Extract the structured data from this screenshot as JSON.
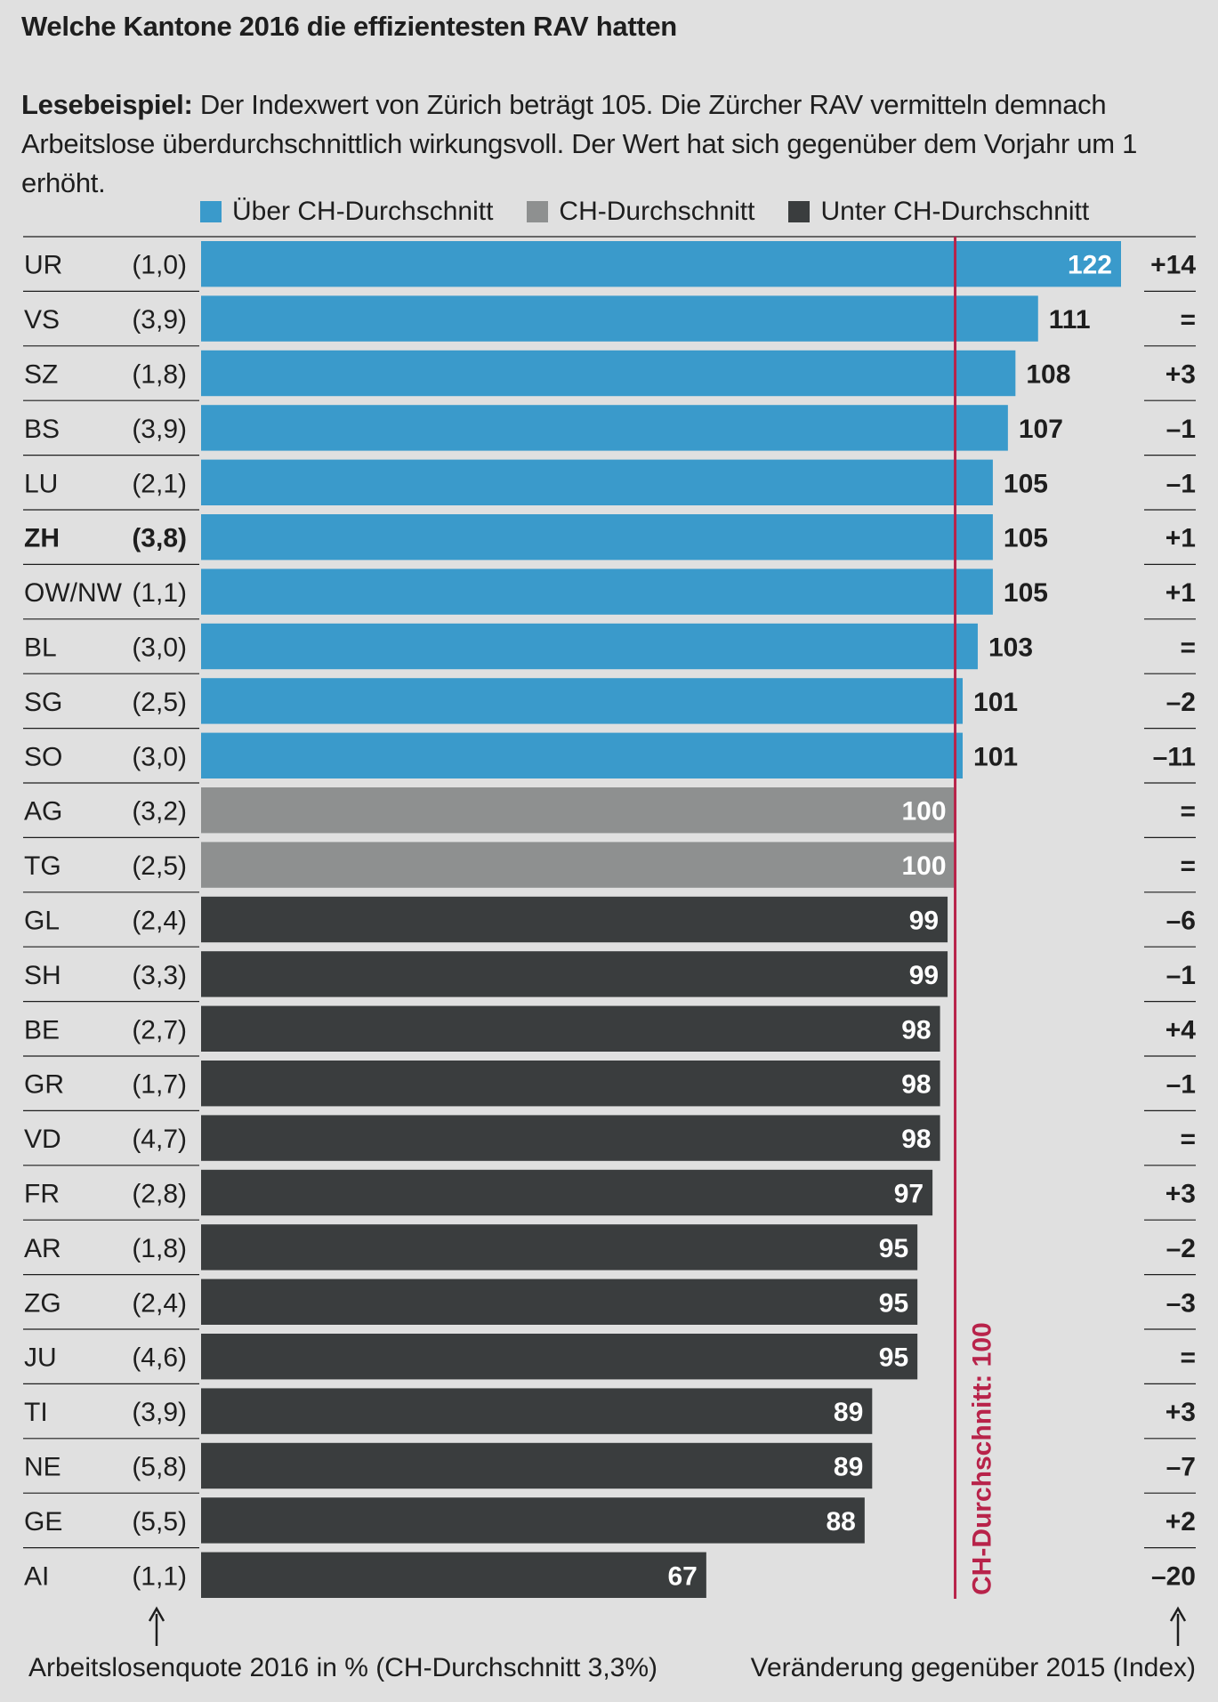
{
  "title": "Welche Kantone 2016 die effizientesten RAV hatten",
  "reading_example": {
    "lead": "Lesebeispiel:",
    "text": " Der Indexwert von Zürich beträgt 105. Die Zürcher RAV vermitteln demnach Arbeitslose überdurchschnittlich wirkungsvoll. Der Wert hat sich gegenüber dem Vorjahr um 1 erhöht."
  },
  "legend": [
    {
      "label": "Über CH-Durchschnitt",
      "color": "#3a9acb"
    },
    {
      "label": "CH-Durchschnitt",
      "color": "#8e9090"
    },
    {
      "label": "Unter CH-Durchschnitt",
      "color": "#3a3d3e"
    }
  ],
  "footnotes": {
    "left": "Arbeitslosenquote 2016 in % (CH-Durchschnitt 3,3%)",
    "right": "Veränderung gegenüber 2015 (Index)"
  },
  "chart_data": {
    "type": "bar",
    "orientation": "horizontal",
    "title": "Welche Kantone 2016 die effizientesten RAV hatten",
    "xlim": [
      0,
      122
    ],
    "reference_line": {
      "value": 100,
      "label": "CH-Durchschnitt: 100",
      "color": "#b8234a"
    },
    "colors": {
      "above": "#3a9acb",
      "average": "#8e9090",
      "below": "#3a3d3e",
      "grid": "#1e1e1e"
    },
    "rows": [
      {
        "canton": "UR",
        "rate": "(1,0)",
        "value": 122,
        "change": "+14",
        "category": "above",
        "highlight": false
      },
      {
        "canton": "VS",
        "rate": "(3,9)",
        "value": 111,
        "change": "=",
        "category": "above",
        "highlight": false
      },
      {
        "canton": "SZ",
        "rate": "(1,8)",
        "value": 108,
        "change": "+3",
        "category": "above",
        "highlight": false
      },
      {
        "canton": "BS",
        "rate": "(3,9)",
        "value": 107,
        "change": "–1",
        "category": "above",
        "highlight": false
      },
      {
        "canton": "LU",
        "rate": "(2,1)",
        "value": 105,
        "change": "–1",
        "category": "above",
        "highlight": false
      },
      {
        "canton": "ZH",
        "rate": "(3,8)",
        "value": 105,
        "change": "+1",
        "category": "above",
        "highlight": true
      },
      {
        "canton": "OW/NW",
        "rate": "(1,1)",
        "value": 105,
        "change": "+1",
        "category": "above",
        "highlight": false
      },
      {
        "canton": "BL",
        "rate": "(3,0)",
        "value": 103,
        "change": "=",
        "category": "above",
        "highlight": false
      },
      {
        "canton": "SG",
        "rate": "(2,5)",
        "value": 101,
        "change": "–2",
        "category": "above",
        "highlight": false
      },
      {
        "canton": "SO",
        "rate": "(3,0)",
        "value": 101,
        "change": "–11",
        "category": "above",
        "highlight": false
      },
      {
        "canton": "AG",
        "rate": "(3,2)",
        "value": 100,
        "change": "=",
        "category": "average",
        "highlight": false
      },
      {
        "canton": "TG",
        "rate": "(2,5)",
        "value": 100,
        "change": "=",
        "category": "average",
        "highlight": false
      },
      {
        "canton": "GL",
        "rate": "(2,4)",
        "value": 99,
        "change": "–6",
        "category": "below",
        "highlight": false
      },
      {
        "canton": "SH",
        "rate": "(3,3)",
        "value": 99,
        "change": "–1",
        "category": "below",
        "highlight": false
      },
      {
        "canton": "BE",
        "rate": "(2,7)",
        "value": 98,
        "change": "+4",
        "category": "below",
        "highlight": false
      },
      {
        "canton": "GR",
        "rate": "(1,7)",
        "value": 98,
        "change": "–1",
        "category": "below",
        "highlight": false
      },
      {
        "canton": "VD",
        "rate": "(4,7)",
        "value": 98,
        "change": "=",
        "category": "below",
        "highlight": false
      },
      {
        "canton": "FR",
        "rate": "(2,8)",
        "value": 97,
        "change": "+3",
        "category": "below",
        "highlight": false
      },
      {
        "canton": "AR",
        "rate": "(1,8)",
        "value": 95,
        "change": "–2",
        "category": "below",
        "highlight": false
      },
      {
        "canton": "ZG",
        "rate": "(2,4)",
        "value": 95,
        "change": "–3",
        "category": "below",
        "highlight": false
      },
      {
        "canton": "JU",
        "rate": "(4,6)",
        "value": 95,
        "change": "=",
        "category": "below",
        "highlight": false
      },
      {
        "canton": "TI",
        "rate": "(3,9)",
        "value": 89,
        "change": "+3",
        "category": "below",
        "highlight": false
      },
      {
        "canton": "NE",
        "rate": "(5,8)",
        "value": 89,
        "change": "–7",
        "category": "below",
        "highlight": false
      },
      {
        "canton": "GE",
        "rate": "(5,5)",
        "value": 88,
        "change": "+2",
        "category": "below",
        "highlight": false
      },
      {
        "canton": "AI",
        "rate": "(1,1)",
        "value": 67,
        "change": "–20",
        "category": "below",
        "highlight": false
      }
    ]
  }
}
